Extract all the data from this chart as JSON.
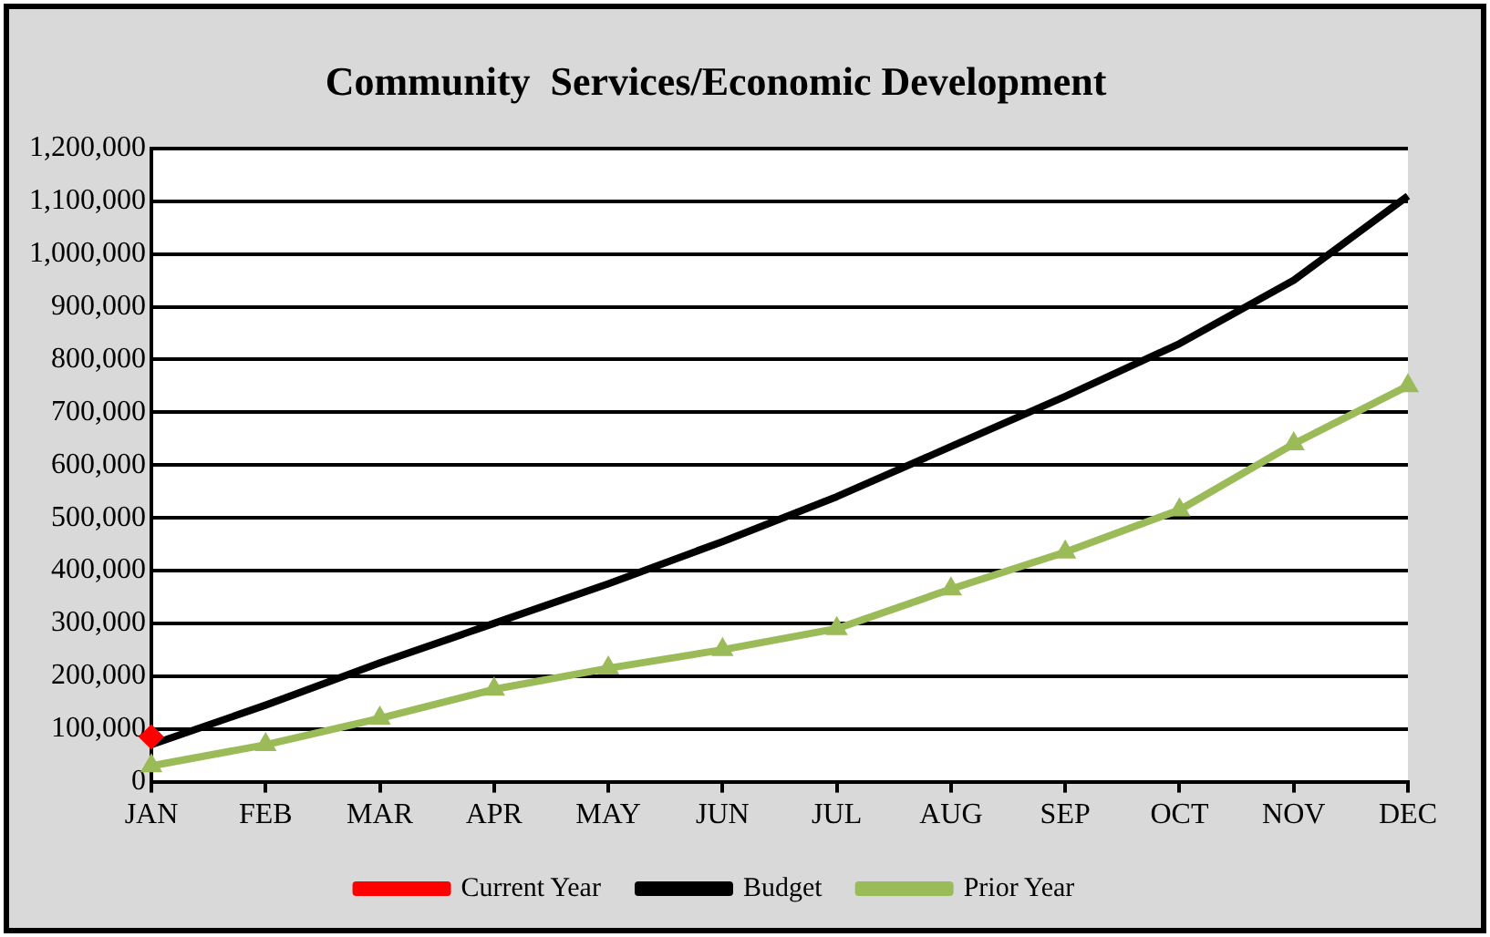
{
  "chart_data": {
    "type": "line",
    "title": "Community  Services/Economic Development",
    "categories": [
      "JAN",
      "FEB",
      "MAR",
      "APR",
      "MAY",
      "JUN",
      "JUL",
      "AUG",
      "SEP",
      "OCT",
      "NOV",
      "DEC"
    ],
    "series": [
      {
        "name": "Current Year",
        "color": "#ff0000",
        "marker": "diamond",
        "values": [
          85000,
          null,
          null,
          null,
          null,
          null,
          null,
          null,
          null,
          null,
          null,
          null
        ]
      },
      {
        "name": "Budget",
        "color": "#000000",
        "marker": "none",
        "values": [
          70000,
          145000,
          225000,
          300000,
          375000,
          455000,
          540000,
          635000,
          730000,
          830000,
          950000,
          1110000
        ]
      },
      {
        "name": "Prior Year",
        "color": "#9bbb59",
        "marker": "triangle",
        "values": [
          30000,
          70000,
          120000,
          175000,
          215000,
          250000,
          290000,
          365000,
          435000,
          515000,
          640000,
          750000
        ]
      }
    ],
    "ylim": [
      0,
      1200000
    ],
    "yticks": [
      0,
      {
        "value": 100000,
        "label": "100,000"
      },
      {
        "value": 200000,
        "label": "200,000"
      },
      {
        "value": 300000,
        "label": "300,000"
      },
      {
        "value": 400000,
        "label": "400,000"
      },
      {
        "value": 500000,
        "label": "500,000"
      },
      {
        "value": 600000,
        "label": "600,000"
      },
      {
        "value": 700000,
        "label": "700,000"
      },
      {
        "value": 800000,
        "label": "800,000"
      },
      {
        "value": 900000,
        "label": "900,000"
      },
      {
        "value": 1000000,
        "label": "1,000,000"
      },
      {
        "value": 1100000,
        "label": "1,100,000"
      },
      {
        "value": 1200000,
        "label": "1,200,000"
      }
    ],
    "grid": "y",
    "legend": "bottom",
    "line_style": "solid"
  }
}
